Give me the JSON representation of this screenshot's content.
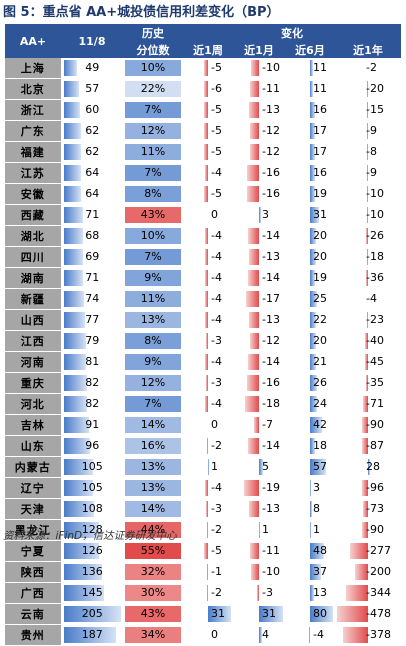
{
  "title": "图 5：重点省 AA+城投债信用利差变化（BP）",
  "headers": {
    "aa": "AA+",
    "date": "11/8",
    "hist1": "历史",
    "hist2": "分位数",
    "change": "变化",
    "w1": "近1周",
    "m1": "近1月",
    "m6": "近6月",
    "y1": "近1年"
  },
  "colors": {
    "header": "#2e5597",
    "province_bg": "#a6a6a6",
    "blue": "#4a7cc9",
    "red": "#e24b4b"
  },
  "rows": [
    {
      "prov": "上海",
      "v": 49,
      "pct": "10%",
      "w1": -5,
      "m1": -10,
      "m6": 11,
      "y1": -2
    },
    {
      "prov": "北京",
      "v": 57,
      "pct": "22%",
      "w1": -6,
      "m1": -11,
      "m6": 11,
      "y1": -20
    },
    {
      "prov": "浙江",
      "v": 60,
      "pct": "7%",
      "w1": -5,
      "m1": -13,
      "m6": 16,
      "y1": -15
    },
    {
      "prov": "广东",
      "v": 62,
      "pct": "12%",
      "w1": -5,
      "m1": -12,
      "m6": 17,
      "y1": -9
    },
    {
      "prov": "福建",
      "v": 62,
      "pct": "11%",
      "w1": -5,
      "m1": -12,
      "m6": 17,
      "y1": -8
    },
    {
      "prov": "江苏",
      "v": 64,
      "pct": "7%",
      "w1": -4,
      "m1": -16,
      "m6": 16,
      "y1": -9
    },
    {
      "prov": "安徽",
      "v": 64,
      "pct": "8%",
      "w1": -5,
      "m1": -16,
      "m6": 19,
      "y1": -10
    },
    {
      "prov": "西藏",
      "v": 71,
      "pct": "43%",
      "w1": 0,
      "m1": 3,
      "m6": 31,
      "y1": -10
    },
    {
      "prov": "湖北",
      "v": 68,
      "pct": "10%",
      "w1": -4,
      "m1": -14,
      "m6": 20,
      "y1": -26
    },
    {
      "prov": "四川",
      "v": 69,
      "pct": "7%",
      "w1": -4,
      "m1": -13,
      "m6": 20,
      "y1": -18
    },
    {
      "prov": "湖南",
      "v": 71,
      "pct": "9%",
      "w1": -4,
      "m1": -14,
      "m6": 19,
      "y1": -36
    },
    {
      "prov": "新疆",
      "v": 74,
      "pct": "11%",
      "w1": -4,
      "m1": -17,
      "m6": 25,
      "y1": -4
    },
    {
      "prov": "山西",
      "v": 77,
      "pct": "13%",
      "w1": -4,
      "m1": -13,
      "m6": 22,
      "y1": -23
    },
    {
      "prov": "江西",
      "v": 79,
      "pct": "8%",
      "w1": -3,
      "m1": -12,
      "m6": 20,
      "y1": -40
    },
    {
      "prov": "河南",
      "v": 81,
      "pct": "9%",
      "w1": -4,
      "m1": -14,
      "m6": 21,
      "y1": -45
    },
    {
      "prov": "重庆",
      "v": 82,
      "pct": "12%",
      "w1": -3,
      "m1": -16,
      "m6": 26,
      "y1": -35
    },
    {
      "prov": "河北",
      "v": 82,
      "pct": "7%",
      "w1": -4,
      "m1": -18,
      "m6": 24,
      "y1": -71
    },
    {
      "prov": "吉林",
      "v": 91,
      "pct": "14%",
      "w1": 0,
      "m1": -7,
      "m6": 42,
      "y1": -90
    },
    {
      "prov": "山东",
      "v": 96,
      "pct": "16%",
      "w1": -2,
      "m1": -14,
      "m6": 18,
      "y1": -87
    },
    {
      "prov": "内蒙古",
      "v": 105,
      "pct": "13%",
      "w1": 1,
      "m1": 5,
      "m6": 57,
      "y1": 28
    },
    {
      "prov": "辽宁",
      "v": 105,
      "pct": "13%",
      "w1": -4,
      "m1": -19,
      "m6": 3,
      "y1": -96
    },
    {
      "prov": "天津",
      "v": 108,
      "pct": "14%",
      "w1": -3,
      "m1": -13,
      "m6": 8,
      "y1": -73
    },
    {
      "prov": "黑龙江",
      "v": 128,
      "pct": "44%",
      "w1": -2,
      "m1": 1,
      "m6": 1,
      "y1": -90
    },
    {
      "prov": "宁夏",
      "v": 126,
      "pct": "55%",
      "w1": -5,
      "m1": -11,
      "m6": 48,
      "y1": -277
    },
    {
      "prov": "陕西",
      "v": 136,
      "pct": "32%",
      "w1": -1,
      "m1": -10,
      "m6": 37,
      "y1": -200
    },
    {
      "prov": "广西",
      "v": 145,
      "pct": "30%",
      "w1": -2,
      "m1": -3,
      "m6": 13,
      "y1": -344
    },
    {
      "prov": "云南",
      "v": 205,
      "pct": "43%",
      "w1": 31,
      "m1": 31,
      "m6": 80,
      "y1": -478
    },
    {
      "prov": "贵州",
      "v": 187,
      "pct": "34%",
      "w1": 0,
      "m1": 4,
      "m6": -4,
      "y1": -378
    }
  ],
  "source": "资料来源：iFinD，信达证券研发中心"
}
